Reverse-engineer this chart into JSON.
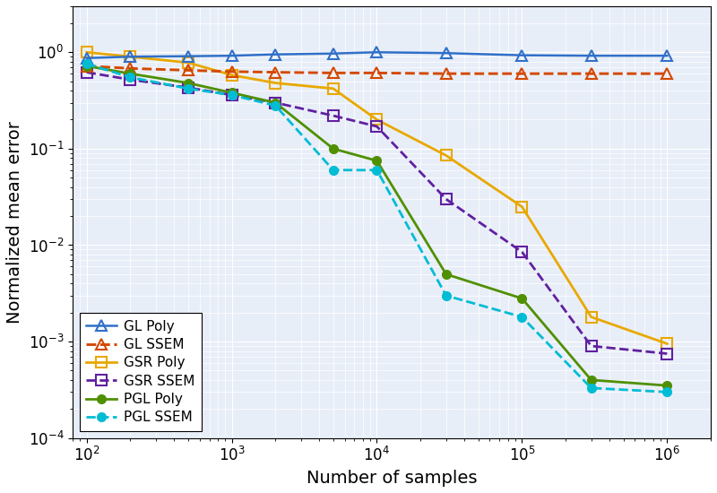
{
  "x": [
    100,
    200,
    500,
    1000,
    2000,
    5000,
    10000,
    30000,
    100000,
    300000,
    1000000
  ],
  "GL_Poly": [
    0.87,
    0.9,
    0.91,
    0.92,
    0.95,
    0.97,
    1.0,
    0.98,
    0.93,
    0.92,
    0.92
  ],
  "GL_SSEM": [
    0.72,
    0.68,
    0.65,
    0.63,
    0.62,
    0.61,
    0.61,
    0.6,
    0.6,
    0.6,
    0.6
  ],
  "GSR_Poly": [
    1.0,
    0.9,
    0.78,
    0.58,
    0.48,
    0.42,
    0.2,
    0.085,
    0.025,
    0.0018,
    0.00095
  ],
  "GSR_SSEM": [
    0.62,
    0.52,
    0.43,
    0.36,
    0.3,
    0.22,
    0.17,
    0.03,
    0.0085,
    0.0009,
    0.00075
  ],
  "PGL_Poly": [
    0.72,
    0.6,
    0.48,
    0.38,
    0.3,
    0.1,
    0.075,
    0.005,
    0.0028,
    0.0004,
    0.00035
  ],
  "PGL_SSEM": [
    0.76,
    0.55,
    0.42,
    0.36,
    0.28,
    0.06,
    0.06,
    0.003,
    0.0018,
    0.00033,
    0.0003
  ],
  "colors": {
    "GL_Poly": "#3070c8",
    "GL_SSEM": "#d44800",
    "GSR_Poly": "#e8a800",
    "GSR_SSEM": "#6020a0",
    "PGL_Poly": "#509000",
    "PGL_SSEM": "#00bcd4"
  },
  "xlabel": "Number of samples",
  "ylabel": "Normalized mean error",
  "xlim_lo": 80,
  "xlim_hi": 2000000,
  "ylim_lo": 0.0001,
  "ylim_hi": 3.0,
  "bg_color": "#e8eef8",
  "grid_color": "#ffffff",
  "fig_width": 8.0,
  "fig_height": 5.5,
  "legend_fontsize": 11,
  "axis_fontsize": 14,
  "tick_fontsize": 12,
  "linewidth": 1.8,
  "markersize_tri": 8,
  "markersize_sq": 8,
  "markersize_circle": 7
}
